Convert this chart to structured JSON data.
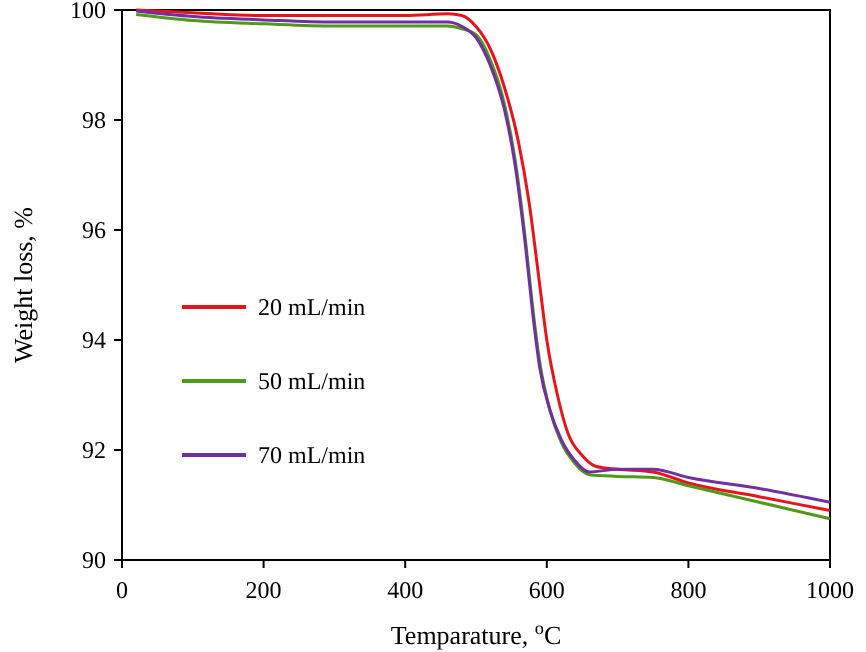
{
  "chart_data": {
    "type": "line",
    "xlabel": "Temparature, $^{o}$C",
    "ylabel": "Weight loss, %",
    "xlim": [
      0,
      1000
    ],
    "ylim": [
      90,
      100
    ],
    "xticks": [
      0,
      200,
      400,
      600,
      800,
      1000
    ],
    "yticks": [
      90,
      92,
      94,
      96,
      98,
      100
    ],
    "grid": false,
    "legend": "left",
    "marker": "none",
    "line_style": "solid",
    "series": [
      {
        "name": "20 mL/min",
        "color": "#e8141c",
        "x": [
          20,
          100,
          200,
          300,
          400,
          460,
          480,
          500,
          520,
          540,
          560,
          575,
          590,
          600,
          615,
          630,
          650,
          670,
          700,
          750,
          800,
          900,
          1000
        ],
        "values": [
          100,
          99.95,
          99.9,
          99.9,
          99.9,
          99.93,
          99.9,
          99.7,
          99.3,
          98.6,
          97.6,
          96.5,
          95,
          94,
          93,
          92.3,
          91.9,
          91.7,
          91.65,
          91.6,
          91.4,
          91.15,
          90.9
        ]
      },
      {
        "name": "50 mL/min",
        "color": "#4e9a1c",
        "x": [
          20,
          100,
          200,
          300,
          400,
          460,
          480,
          500,
          520,
          540,
          555,
          570,
          580,
          590,
          605,
          620,
          640,
          660,
          700,
          750,
          800,
          900,
          1000
        ],
        "values": [
          99.92,
          99.81,
          99.75,
          99.71,
          99.71,
          99.71,
          99.66,
          99.55,
          99.1,
          98.3,
          97.3,
          95.8,
          94.6,
          93.6,
          92.7,
          92.15,
          91.75,
          91.55,
          91.52,
          91.5,
          91.35,
          91.05,
          90.75
        ]
      },
      {
        "name": "70 mL/min",
        "color": "#7030a0",
        "x": [
          20,
          100,
          200,
          300,
          400,
          460,
          480,
          500,
          520,
          540,
          555,
          570,
          580,
          590,
          605,
          620,
          640,
          660,
          700,
          750,
          800,
          900,
          1000
        ],
        "values": [
          99.98,
          99.88,
          99.82,
          99.78,
          99.78,
          99.78,
          99.7,
          99.5,
          99,
          98.2,
          97.2,
          95.7,
          94.5,
          93.5,
          92.7,
          92.2,
          91.8,
          91.6,
          91.65,
          91.65,
          91.5,
          91.3,
          91.05
        ]
      }
    ]
  }
}
